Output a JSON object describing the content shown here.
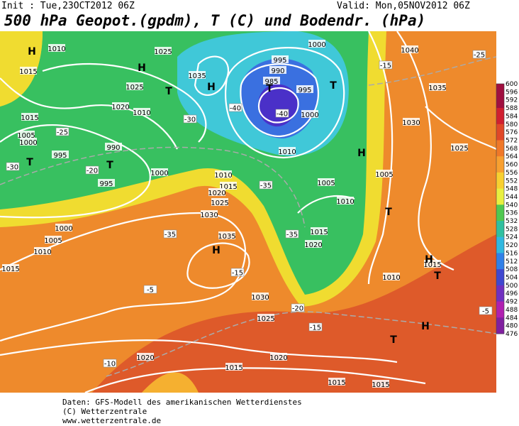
{
  "header": {
    "init": "Init : Tue,23OCT2012 06Z",
    "valid": "Valid: Mon,05NOV2012 06Z",
    "title": "500 hPa Geopot.(gpdm), T (C) und Bodendr. (hPa)"
  },
  "colorbar": {
    "labels": [
      600,
      596,
      592,
      588,
      584,
      580,
      576,
      572,
      568,
      564,
      560,
      556,
      552,
      548,
      544,
      540,
      536,
      532,
      528,
      524,
      520,
      516,
      512,
      508,
      504,
      500,
      496,
      492,
      488,
      484,
      480,
      476
    ]
  },
  "map_labels": [
    "H",
    "1010",
    "1015",
    "1025",
    "H",
    "1035",
    "H",
    "1025",
    "T",
    "1020",
    "1010",
    "1015",
    "1005",
    "1000",
    "995",
    "T",
    "990",
    "T",
    "1000",
    "995",
    "1010",
    "1015",
    "1020",
    "1025",
    "1030",
    "1035",
    "H",
    "1000",
    "1005",
    "1010",
    "1015",
    "995",
    "990",
    "985",
    "T",
    "995",
    "1000",
    "1010",
    "1005",
    "1010",
    "1015",
    "1020",
    "1025",
    "1030",
    "1020",
    "1015",
    "1020",
    "1015",
    "1015",
    "1040",
    "1035",
    "1030",
    "1025",
    "1005",
    "1010",
    "1015",
    "H",
    "T",
    "H",
    "T",
    "T",
    "H",
    "T",
    "1000"
  ],
  "temp_labels": [
    "-25",
    "-30",
    "-20",
    "-35",
    "-30",
    "-40",
    "-40",
    "-15",
    "-5",
    "-10",
    "-15",
    "-20",
    "-25",
    "-15",
    "-5",
    "-35",
    "-35"
  ],
  "footer": [
    "Daten: GFS-Modell des amerikanischen Wetterdienstes",
    "(C) Wetterzentrale",
    "www.wetterzentrale.de"
  ]
}
